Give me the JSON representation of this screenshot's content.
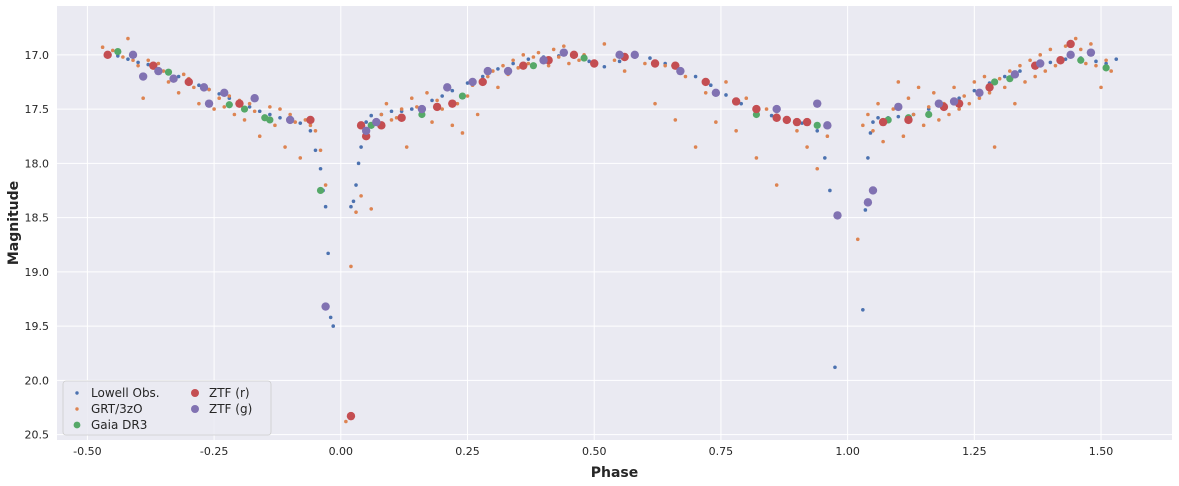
{
  "chart_data": {
    "type": "scatter",
    "title": "",
    "xlabel": "Phase",
    "ylabel": "Magnitude",
    "xlim": [
      -0.56,
      1.64
    ],
    "ylim": [
      20.55,
      16.55
    ],
    "y_inverted": true,
    "grid": true,
    "legend_position": "lower-left",
    "legend_columns": 2,
    "x_ticks": [
      -0.5,
      -0.25,
      0.0,
      0.25,
      0.5,
      0.75,
      1.0,
      1.25,
      1.5
    ],
    "x_tick_labels": [
      "-0.50",
      "-0.25",
      "0.00",
      "0.25",
      "0.50",
      "0.75",
      "1.00",
      "1.25",
      "1.50"
    ],
    "y_ticks": [
      17.0,
      17.5,
      18.0,
      18.5,
      19.0,
      19.5,
      20.0,
      20.5
    ],
    "y_tick_labels": [
      "17.0",
      "17.5",
      "18.0",
      "18.5",
      "19.0",
      "19.5",
      "20.0",
      "20.5"
    ],
    "colors": {
      "background": "#eaeaf2",
      "grid": "#ffffff",
      "text": "#262626"
    },
    "series": [
      {
        "name": "Lowell Obs.",
        "color": "#4c72b0",
        "marker_size": "small",
        "x": [
          -0.46,
          -0.44,
          -0.42,
          -0.4,
          -0.38,
          -0.36,
          -0.34,
          -0.32,
          -0.3,
          -0.28,
          -0.26,
          -0.24,
          -0.22,
          -0.2,
          -0.18,
          -0.16,
          -0.14,
          -0.12,
          -0.1,
          -0.08,
          -0.06,
          -0.05,
          -0.04,
          -0.035,
          -0.03,
          -0.025,
          -0.02,
          -0.015,
          0.02,
          0.025,
          0.03,
          0.035,
          0.04,
          0.05,
          0.06,
          0.08,
          0.1,
          0.12,
          0.14,
          0.16,
          0.18,
          0.2,
          0.22,
          0.25,
          0.28,
          0.31,
          0.34,
          0.37,
          0.4,
          0.43,
          0.46,
          0.49,
          0.52,
          0.55,
          0.58,
          0.61,
          0.64,
          0.67,
          0.7,
          0.73,
          0.76,
          0.79,
          0.82,
          0.85,
          0.88,
          0.91,
          0.94,
          0.955,
          0.965,
          0.975,
          1.03,
          1.035,
          1.04,
          1.045,
          1.05,
          1.06,
          1.08,
          1.1,
          1.13,
          1.16,
          1.19,
          1.22,
          1.25,
          1.28,
          1.31,
          1.34,
          1.37,
          1.4,
          1.43,
          1.46,
          1.49,
          1.51,
          1.53
        ],
        "y": [
          16.99,
          17.01,
          17.04,
          17.07,
          17.09,
          17.13,
          17.17,
          17.2,
          17.24,
          17.28,
          17.32,
          17.36,
          17.4,
          17.44,
          17.48,
          17.52,
          17.55,
          17.58,
          17.6,
          17.63,
          17.7,
          17.88,
          18.05,
          18.25,
          18.4,
          18.83,
          19.42,
          19.5,
          18.4,
          18.35,
          18.2,
          18.0,
          17.85,
          17.62,
          17.56,
          17.55,
          17.52,
          17.52,
          17.5,
          17.48,
          17.42,
          17.38,
          17.33,
          17.26,
          17.2,
          17.13,
          17.08,
          17.04,
          17.02,
          17.01,
          17.02,
          17.06,
          17.11,
          17.06,
          17.01,
          17.03,
          17.08,
          17.14,
          17.2,
          17.28,
          17.37,
          17.45,
          17.52,
          17.56,
          17.6,
          17.63,
          17.7,
          17.95,
          18.25,
          19.88,
          19.35,
          18.43,
          17.95,
          17.72,
          17.62,
          17.58,
          17.58,
          17.57,
          17.55,
          17.5,
          17.45,
          17.4,
          17.33,
          17.26,
          17.2,
          17.15,
          17.1,
          17.07,
          17.04,
          17.03,
          17.06,
          17.08,
          17.04
        ]
      },
      {
        "name": "GRT/3zO",
        "color": "#dd8452",
        "marker_size": "small",
        "x": [
          -0.47,
          -0.45,
          -0.43,
          -0.42,
          -0.41,
          -0.4,
          -0.39,
          -0.38,
          -0.37,
          -0.36,
          -0.35,
          -0.34,
          -0.33,
          -0.32,
          -0.31,
          -0.3,
          -0.29,
          -0.28,
          -0.27,
          -0.26,
          -0.25,
          -0.24,
          -0.23,
          -0.22,
          -0.21,
          -0.2,
          -0.19,
          -0.18,
          -0.17,
          -0.16,
          -0.15,
          -0.14,
          -0.13,
          -0.12,
          -0.11,
          -0.1,
          -0.09,
          -0.08,
          -0.07,
          -0.06,
          -0.05,
          -0.04,
          -0.03,
          0.01,
          0.02,
          0.03,
          0.04,
          0.05,
          0.06,
          0.07,
          0.08,
          0.09,
          0.1,
          0.11,
          0.12,
          0.13,
          0.14,
          0.15,
          0.16,
          0.17,
          0.18,
          0.19,
          0.2,
          0.21,
          0.22,
          0.23,
          0.24,
          0.25,
          0.26,
          0.27,
          0.28,
          0.29,
          0.3,
          0.31,
          0.32,
          0.33,
          0.34,
          0.35,
          0.36,
          0.37,
          0.38,
          0.39,
          0.4,
          0.41,
          0.42,
          0.43,
          0.44,
          0.45,
          0.46,
          0.47,
          0.48,
          0.5,
          0.52,
          0.54,
          0.56,
          0.58,
          0.6,
          0.62,
          0.64,
          0.66,
          0.68,
          0.7,
          0.72,
          0.74,
          0.76,
          0.78,
          0.8,
          0.82,
          0.84,
          0.86,
          0.88,
          0.9,
          0.92,
          0.94,
          0.96,
          1.02,
          1.03,
          1.04,
          1.05,
          1.06,
          1.07,
          1.08,
          1.09,
          1.1,
          1.11,
          1.12,
          1.13,
          1.14,
          1.15,
          1.16,
          1.17,
          1.18,
          1.19,
          1.2,
          1.21,
          1.22,
          1.23,
          1.24,
          1.25,
          1.26,
          1.27,
          1.28,
          1.29,
          1.3,
          1.31,
          1.32,
          1.33,
          1.34,
          1.35,
          1.36,
          1.37,
          1.38,
          1.39,
          1.4,
          1.41,
          1.42,
          1.43,
          1.44,
          1.45,
          1.46,
          1.47,
          1.48,
          1.49,
          1.5,
          1.51,
          1.52
        ],
        "y": [
          16.93,
          16.96,
          17.02,
          16.85,
          17.05,
          17.1,
          17.4,
          17.05,
          17.12,
          17.08,
          17.15,
          17.25,
          17.2,
          17.35,
          17.18,
          17.22,
          17.3,
          17.45,
          17.28,
          17.32,
          17.5,
          17.4,
          17.48,
          17.38,
          17.55,
          17.42,
          17.6,
          17.45,
          17.52,
          17.75,
          17.58,
          17.48,
          17.65,
          17.5,
          17.85,
          17.55,
          17.62,
          17.95,
          17.6,
          17.65,
          17.7,
          17.88,
          18.2,
          20.38,
          18.95,
          18.45,
          18.3,
          17.7,
          18.42,
          17.6,
          17.55,
          17.45,
          17.6,
          17.58,
          17.5,
          17.85,
          17.4,
          17.48,
          17.55,
          17.35,
          17.62,
          17.42,
          17.5,
          17.3,
          17.65,
          17.45,
          17.72,
          17.38,
          17.28,
          17.55,
          17.25,
          17.2,
          17.15,
          17.3,
          17.1,
          17.18,
          17.05,
          17.12,
          17.0,
          17.08,
          17.02,
          16.98,
          17.05,
          17.1,
          16.95,
          17.02,
          16.92,
          17.08,
          16.98,
          17.05,
          17.0,
          17.1,
          16.9,
          17.05,
          17.15,
          17.02,
          17.08,
          17.45,
          17.1,
          17.6,
          17.2,
          17.85,
          17.35,
          17.62,
          17.25,
          17.7,
          17.4,
          17.95,
          17.5,
          18.2,
          17.58,
          17.7,
          17.85,
          18.05,
          17.75,
          18.7,
          17.65,
          17.55,
          17.7,
          17.45,
          17.8,
          17.6,
          17.5,
          17.25,
          17.75,
          17.4,
          17.55,
          17.3,
          17.65,
          17.48,
          17.35,
          17.6,
          17.45,
          17.55,
          17.3,
          17.5,
          17.38,
          17.45,
          17.25,
          17.4,
          17.2,
          17.35,
          17.85,
          17.22,
          17.3,
          17.15,
          17.45,
          17.1,
          17.25,
          17.05,
          17.2,
          17.0,
          17.15,
          16.95,
          17.1,
          17.05,
          16.92,
          17.0,
          16.85,
          16.95,
          17.08,
          16.9,
          17.1,
          17.3,
          17.05,
          17.15
        ],
        "note_placeholder_removed": ""
      },
      {
        "name": "Gaia DR3",
        "color": "#55a868",
        "marker_size": "medium",
        "x": [
          -0.44,
          -0.34,
          -0.22,
          -0.19,
          -0.15,
          -0.14,
          -0.04,
          0.06,
          0.16,
          0.24,
          0.38,
          0.48,
          0.58,
          0.74,
          0.82,
          0.88,
          0.94,
          1.08,
          1.12,
          1.16,
          1.22,
          1.29,
          1.32,
          1.46,
          1.51
        ],
        "y": [
          16.97,
          17.16,
          17.46,
          17.5,
          17.58,
          17.6,
          18.25,
          17.65,
          17.55,
          17.38,
          17.1,
          17.03,
          17.0,
          17.35,
          17.55,
          17.6,
          17.65,
          17.6,
          17.58,
          17.55,
          17.45,
          17.25,
          17.22,
          17.05,
          17.12
        ]
      },
      {
        "name": "ZTF (r)",
        "color": "#c44e52",
        "marker_size": "large",
        "x": [
          -0.46,
          -0.37,
          -0.3,
          -0.2,
          -0.06,
          0.02,
          0.04,
          0.05,
          0.08,
          0.12,
          0.19,
          0.22,
          0.28,
          0.36,
          0.41,
          0.46,
          0.5,
          0.56,
          0.62,
          0.66,
          0.72,
          0.78,
          0.82,
          0.86,
          0.88,
          0.9,
          0.92,
          1.07,
          1.12,
          1.19,
          1.22,
          1.28,
          1.37,
          1.42,
          1.44
        ],
        "y": [
          17.0,
          17.1,
          17.25,
          17.45,
          17.6,
          20.33,
          17.65,
          17.75,
          17.65,
          17.58,
          17.48,
          17.45,
          17.25,
          17.1,
          17.05,
          17.0,
          17.08,
          17.02,
          17.08,
          17.1,
          17.25,
          17.43,
          17.5,
          17.58,
          17.6,
          17.62,
          17.62,
          17.62,
          17.6,
          17.48,
          17.45,
          17.3,
          17.1,
          17.05,
          16.9
        ]
      },
      {
        "name": "ZTF (g)",
        "color": "#8172b2",
        "marker_size": "large",
        "x": [
          -0.41,
          -0.39,
          -0.36,
          -0.33,
          -0.27,
          -0.26,
          -0.23,
          -0.17,
          -0.1,
          -0.03,
          0.05,
          0.07,
          0.16,
          0.21,
          0.26,
          0.29,
          0.33,
          0.4,
          0.44,
          0.55,
          0.58,
          0.67,
          0.74,
          0.86,
          0.94,
          0.96,
          0.98,
          1.04,
          1.05,
          1.1,
          1.18,
          1.21,
          1.26,
          1.33,
          1.38,
          1.44,
          1.48
        ],
        "y": [
          17.0,
          17.2,
          17.15,
          17.22,
          17.3,
          17.45,
          17.35,
          17.4,
          17.6,
          19.32,
          17.7,
          17.62,
          17.5,
          17.3,
          17.25,
          17.15,
          17.15,
          17.05,
          16.98,
          17.0,
          17.0,
          17.15,
          17.35,
          17.5,
          17.45,
          17.65,
          18.48,
          18.36,
          18.25,
          17.48,
          17.45,
          17.43,
          17.35,
          17.18,
          17.08,
          17.0,
          16.98
        ]
      }
    ]
  }
}
